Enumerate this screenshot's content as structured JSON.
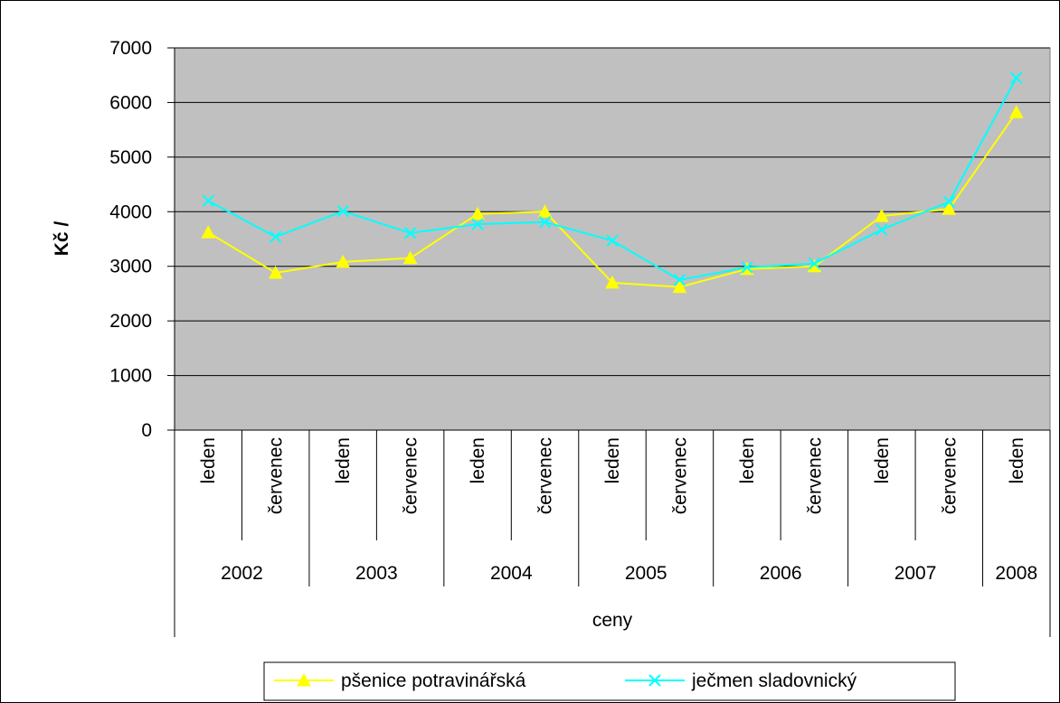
{
  "chart_data": {
    "type": "line",
    "title": "",
    "ylabel": "Kč /",
    "xlabel": "ceny",
    "ylim": [
      0,
      7000
    ],
    "yticks": [
      0,
      1000,
      2000,
      3000,
      4000,
      5000,
      6000,
      7000
    ],
    "grid": true,
    "legend_position": "bottom",
    "categories": [
      {
        "month": "leden",
        "year": "2002"
      },
      {
        "month": "červenec",
        "year": "2002"
      },
      {
        "month": "leden",
        "year": "2003"
      },
      {
        "month": "červenec",
        "year": "2003"
      },
      {
        "month": "leden",
        "year": "2004"
      },
      {
        "month": "červenec",
        "year": "2004"
      },
      {
        "month": "leden",
        "year": "2005"
      },
      {
        "month": "červenec",
        "year": "2005"
      },
      {
        "month": "leden",
        "year": "2006"
      },
      {
        "month": "červenec",
        "year": "2006"
      },
      {
        "month": "leden",
        "year": "2007"
      },
      {
        "month": "červenec",
        "year": "2007"
      },
      {
        "month": "leden",
        "year": "2008"
      }
    ],
    "year_groups": [
      {
        "year": "2002",
        "count": 2
      },
      {
        "year": "2003",
        "count": 2
      },
      {
        "year": "2004",
        "count": 2
      },
      {
        "year": "2005",
        "count": 2
      },
      {
        "year": "2006",
        "count": 2
      },
      {
        "year": "2007",
        "count": 2
      },
      {
        "year": "2008",
        "count": 1
      }
    ],
    "series": [
      {
        "name": "pšenice potravinářská",
        "color": "#ffff00",
        "marker": "triangle",
        "values": [
          3620,
          2880,
          3080,
          3150,
          3960,
          4000,
          2700,
          2620,
          2950,
          3000,
          3920,
          4050,
          5820
        ]
      },
      {
        "name": "ječmen sladovnický",
        "color": "#00ffff",
        "marker": "x",
        "values": [
          4200,
          3540,
          4010,
          3610,
          3770,
          3810,
          3470,
          2750,
          2980,
          3050,
          3670,
          4180,
          6450
        ]
      }
    ],
    "plot_background": "#c0c0c0"
  }
}
